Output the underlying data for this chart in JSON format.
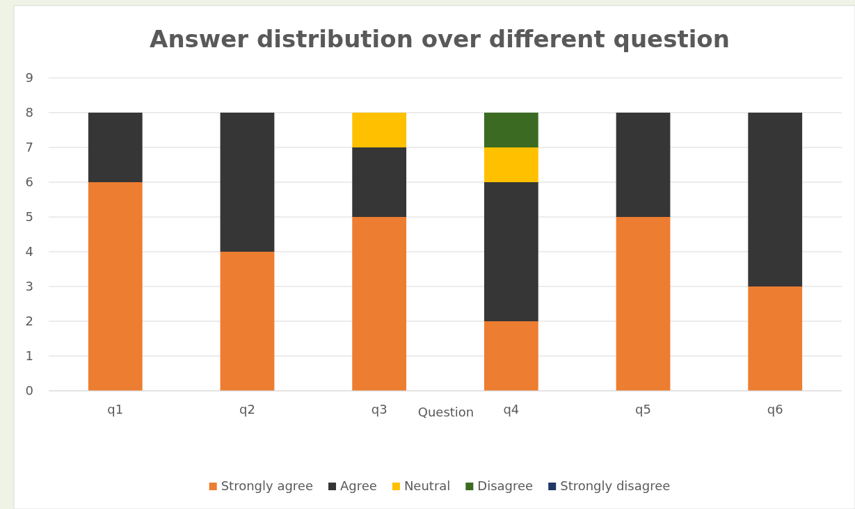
{
  "chart_data": {
    "type": "bar",
    "title": "Answer distribution over different question",
    "xlabel": "Question",
    "categories": [
      "q1",
      "q2",
      "q3",
      "q4",
      "q5",
      "q6"
    ],
    "stacked": true,
    "ylim": [
      0,
      9
    ],
    "yticks": [
      0,
      1,
      2,
      3,
      4,
      5,
      6,
      7,
      8,
      9
    ],
    "grid": "y",
    "legend": "bottom",
    "series": [
      {
        "name": "Strongly agree",
        "color": "#ed7d31",
        "values": [
          6,
          4,
          5,
          2,
          5,
          3
        ]
      },
      {
        "name": "Agree",
        "color": "#363636",
        "values": [
          2,
          4,
          2,
          4,
          3,
          5
        ]
      },
      {
        "name": "Neutral",
        "color": "#ffc000",
        "values": [
          0,
          0,
          1,
          1,
          0,
          0
        ]
      },
      {
        "name": "Disagree",
        "color": "#3b6b22",
        "values": [
          0,
          0,
          0,
          1,
          0,
          0
        ]
      },
      {
        "name": "Strongly disagree",
        "color": "#203864",
        "values": [
          0,
          0,
          0,
          0,
          0,
          0
        ]
      }
    ]
  }
}
